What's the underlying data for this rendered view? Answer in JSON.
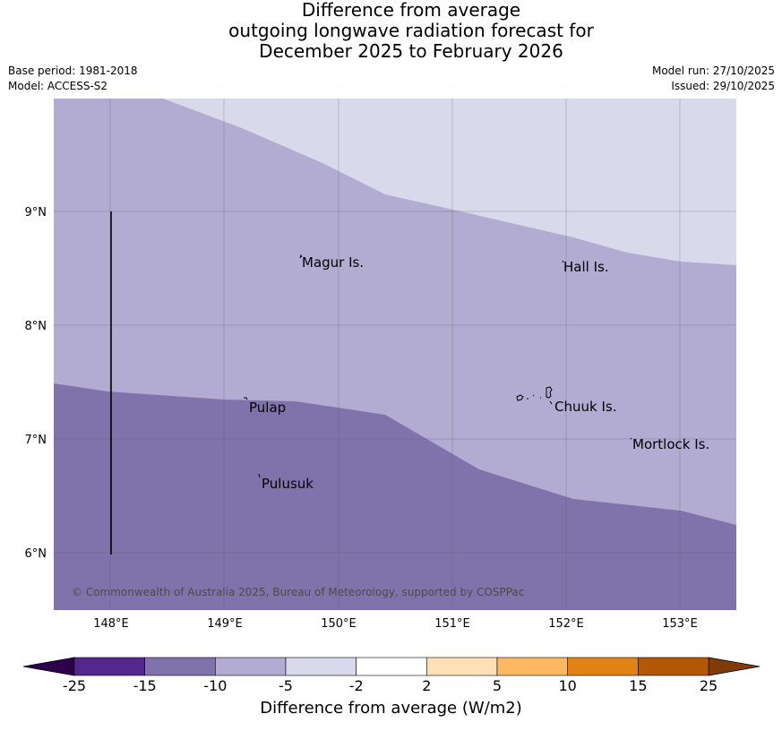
{
  "title": {
    "line1": "Difference from average",
    "line2": "outgoing longwave radiation forecast for",
    "line3": "December 2025 to February 2026"
  },
  "meta": {
    "base_period": "Base period: 1981-2018",
    "model": "Model: ACCESS-S2",
    "model_run": "Model run: 27/10/2025",
    "issued": "Issued: 29/10/2025"
  },
  "map": {
    "lon_ticks": [
      "148°E",
      "149°E",
      "150°E",
      "151°E",
      "152°E",
      "153°E"
    ],
    "lat_ticks": [
      "9°N",
      "8°N",
      "7°N",
      "6°N"
    ],
    "places": [
      {
        "name": "Magur Is."
      },
      {
        "name": "Hall Is."
      },
      {
        "name": "Pulap"
      },
      {
        "name": "Chuuk Is."
      },
      {
        "name": "Mortlock Is."
      },
      {
        "name": "Pulusuk"
      }
    ],
    "copyright": "© Commonwealth of Australia 2025, Bureau of Meteorology, supported by COSPPac"
  },
  "colorbar": {
    "title": "Difference from average (W/m2)",
    "labels": [
      "-25",
      "-15",
      "-10",
      "-5",
      "-2",
      "2",
      "5",
      "10",
      "15",
      "25"
    ],
    "colors": [
      "#54278f",
      "#8073ac",
      "#b2abd2",
      "#d8daeb",
      "#ffffff",
      "#fee0b6",
      "#fdb863",
      "#e08214",
      "#b35806"
    ],
    "low_color": "#2d004b",
    "high_color": "#7f3b08"
  },
  "fills": {
    "band_minus15": "#8073ac",
    "band_minus10": "#b2abd2",
    "band_minus5": "#d8daeb"
  }
}
